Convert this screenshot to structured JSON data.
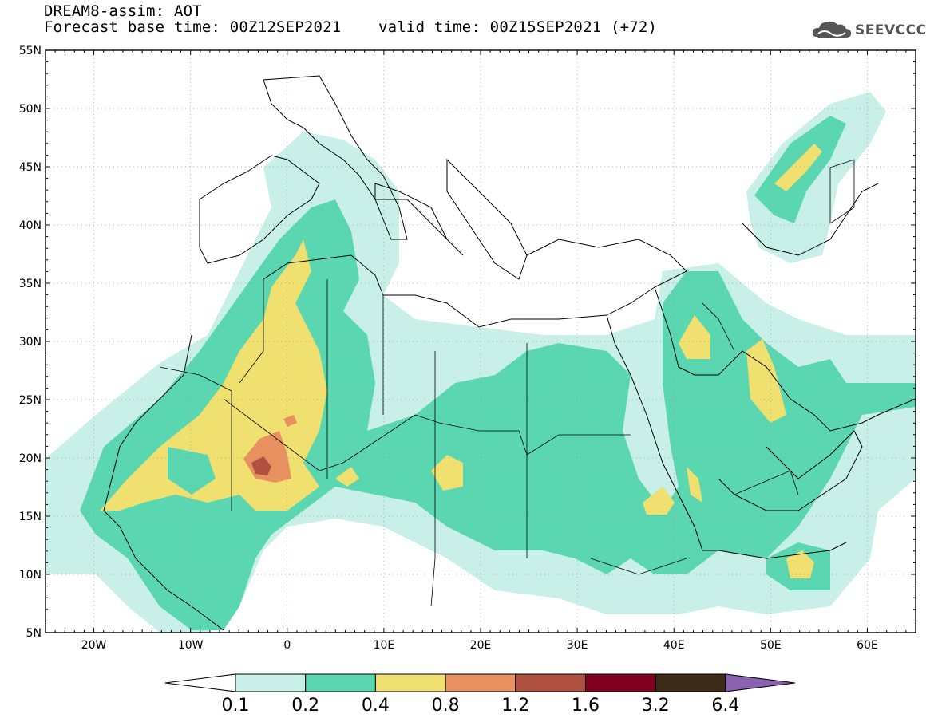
{
  "header": {
    "title": "DREAM8-assim: AOT",
    "base_time": "Forecast base time: 00Z12SEP2021",
    "valid_time": "valid time: 00Z15SEP2021 (+72)"
  },
  "logo": {
    "text": "SEEVCCC",
    "icon": "cloud-logo-icon"
  },
  "axes": {
    "lon_range": [
      -25,
      65
    ],
    "lat_range": [
      5,
      55
    ],
    "lat_ticks": [
      "55N",
      "50N",
      "45N",
      "40N",
      "35N",
      "30N",
      "25N",
      "20N",
      "15N",
      "10N",
      "5N"
    ],
    "lon_ticks": [
      "20W",
      "10W",
      "0",
      "10E",
      "20E",
      "30E",
      "40E",
      "50E",
      "60E"
    ]
  },
  "colorbar": {
    "levels": [
      "0.1",
      "0.2",
      "0.4",
      "0.8",
      "1.2",
      "1.6",
      "3.2",
      "6.4"
    ],
    "colors": [
      "#c8f0e8",
      "#5ad6b0",
      "#f0e070",
      "#e89060",
      "#b05040",
      "#800020",
      "#3a2a18",
      "#8a60b0"
    ],
    "under_color": "#ffffff",
    "over_color": "#8a60b0"
  }
}
